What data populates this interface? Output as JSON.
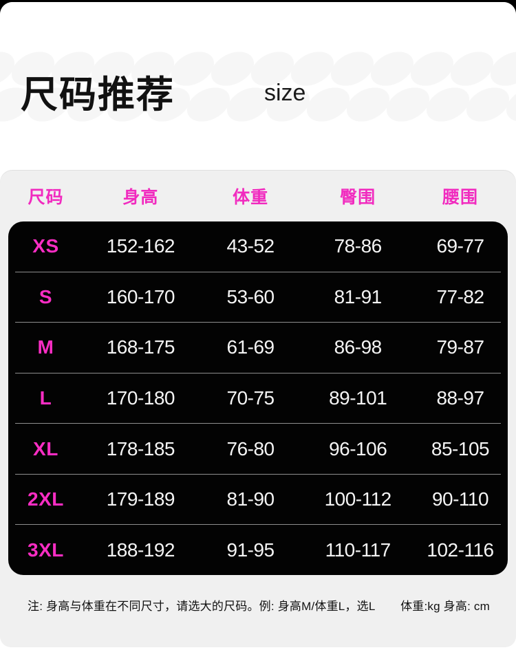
{
  "header": {
    "title": "尺码推荐",
    "subtitle": "size"
  },
  "chart_data": {
    "type": "table",
    "title": "尺码推荐",
    "columns": [
      "尺码",
      "身高",
      "体重",
      "臀围",
      "腰围"
    ],
    "rows": [
      [
        "XS",
        "152-162",
        "43-52",
        "78-86",
        "69-77"
      ],
      [
        "S",
        "160-170",
        "53-60",
        "81-91",
        "77-82"
      ],
      [
        "M",
        "168-175",
        "61-69",
        "86-98",
        "79-87"
      ],
      [
        "L",
        "170-180",
        "70-75",
        "89-101",
        "88-97"
      ],
      [
        "XL",
        "178-185",
        "76-80",
        "96-106",
        "85-105"
      ],
      [
        "2XL",
        "179-189",
        "81-90",
        "100-112",
        "90-110"
      ],
      [
        "3XL",
        "188-192",
        "91-95",
        "110-117",
        "102-116"
      ]
    ],
    "units": {
      "height": "cm",
      "weight": "kg",
      "hip": "cm",
      "waist": "cm"
    }
  },
  "footer": {
    "note": "注: 身高与体重在不同尺寸，请选大的尺码。例: 身高M/体重L，选L",
    "units": "体重:kg 身高: cm"
  },
  "colors": {
    "accent_pink": "#f12bbf",
    "table_bg": "#030303",
    "card_bg": "#f0f0f0",
    "page_bg": "#ffffff",
    "pattern_ellipse": "#f6f6f6",
    "separator": "#8f8f8f",
    "value_text": "#f4f4f4"
  }
}
